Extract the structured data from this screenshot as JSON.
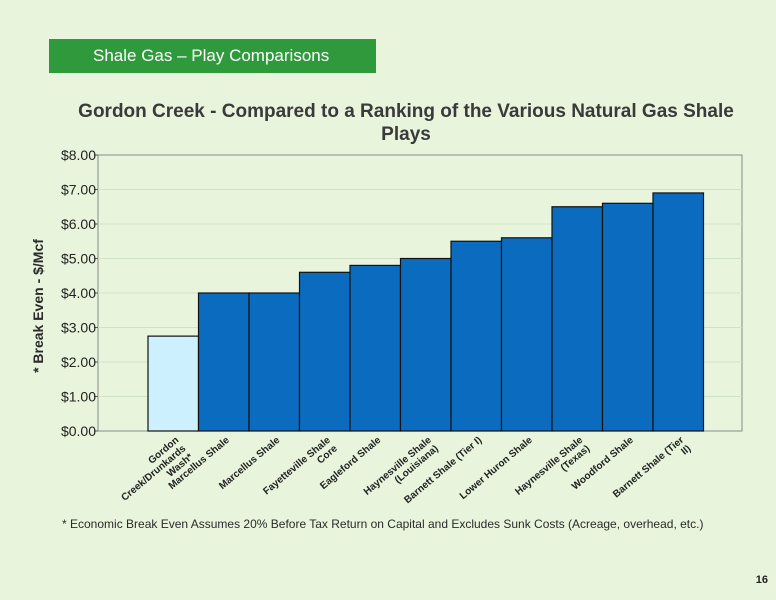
{
  "header": {
    "title": "Shale Gas – Play Comparisons"
  },
  "footnote": "* Economic Break Even Assumes 20% Before Tax Return on Capital and Excludes Sunk Costs (Acreage, overhead, etc.)",
  "page_number": "16",
  "colors": {
    "highlight_bar": "#cdf0ff",
    "bar": "#0b6bbf",
    "header_bg": "#2f9a3c",
    "background": "#e8f5dc"
  },
  "chart_data": {
    "type": "bar",
    "title": "Gordon Creek - Compared to a Ranking of the Various Natural Gas Shale Plays",
    "ylabel": "* Break Even - $/Mcf",
    "xlabel": "",
    "ylim": [
      0,
      8
    ],
    "yticks": [
      "$0.00",
      "$1.00",
      "$2.00",
      "$3.00",
      "$4.00",
      "$5.00",
      "$6.00",
      "$7.00",
      "$8.00"
    ],
    "categories": [
      "Gordon Creek/Drunkards Wash*",
      "Marcellus Shale",
      "Marcellus Shale",
      "Fayetteville Shale Core",
      "Eagleford Shale",
      "Haynesville Shale (Louisiana)",
      "Barnett Shale (Tier I)",
      "Lower Huron Shale",
      "Haynesville Shale (Texas)",
      "Woodford Shale",
      "Barnett Shale (Tier II)"
    ],
    "category_lines": [
      [
        "Gordon",
        "Creek/Drunkards",
        "Wash*"
      ],
      [
        "Marcellus Shale"
      ],
      [
        "Marcellus Shale"
      ],
      [
        "Fayetteville Shale",
        "Core"
      ],
      [
        "Eagleford Shale"
      ],
      [
        "Haynesville Shale",
        "(Louisiana)"
      ],
      [
        "Barnett Shale (Tier I)"
      ],
      [
        "Lower Huron Shale"
      ],
      [
        "Haynesville Shale",
        "(Texas)"
      ],
      [
        "Woodford Shale"
      ],
      [
        "Barnett Shale (Tier",
        "II)"
      ]
    ],
    "values": [
      2.75,
      4.0,
      4.0,
      4.6,
      4.8,
      5.0,
      5.5,
      5.6,
      6.5,
      6.6,
      6.9
    ],
    "grid": true,
    "legend": "none"
  }
}
